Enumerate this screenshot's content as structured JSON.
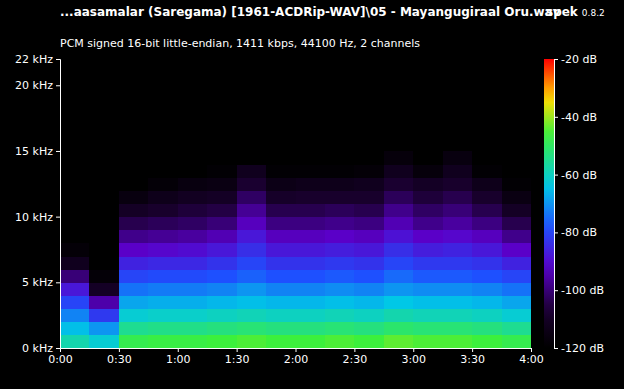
{
  "chart_data": {
    "type": "spectrogram",
    "title": "...aasamalar (Saregama) [1961-ACDRip-WAV]\\05 - Mayangugiraal Oru.wav",
    "subtitle": "PCM signed 16-bit little-endian, 1411 kbps, 44100 Hz, 2 channels",
    "annotations": [
      "spek",
      "0.8.2"
    ],
    "xlim": [
      0,
      240
    ],
    "xticks": [
      {
        "value": 0,
        "label": "0:00"
      },
      {
        "value": 30,
        "label": "0:30"
      },
      {
        "value": 60,
        "label": "1:00"
      },
      {
        "value": 90,
        "label": "1:30"
      },
      {
        "value": 120,
        "label": "2:00"
      },
      {
        "value": 150,
        "label": "2:30"
      },
      {
        "value": 180,
        "label": "3:00"
      },
      {
        "value": 210,
        "label": "3:30"
      },
      {
        "value": 240,
        "label": "4:00"
      }
    ],
    "ylim": [
      0,
      22
    ],
    "yticks": [
      {
        "value": 0,
        "label": "0 kHz"
      },
      {
        "value": 5,
        "label": "5 kHz"
      },
      {
        "value": 10,
        "label": "10 kHz"
      },
      {
        "value": 15,
        "label": "15 kHz"
      },
      {
        "value": 20,
        "label": "20 kHz"
      },
      {
        "value": 22,
        "label": "22 kHz"
      }
    ],
    "x_bins": [
      0,
      15,
      30,
      45,
      60,
      75,
      90,
      105,
      120,
      135,
      150,
      165,
      180,
      195,
      210,
      225,
      240
    ],
    "y_bins": [
      0,
      1,
      2,
      3,
      4,
      5,
      6,
      7,
      8,
      9,
      10,
      11,
      12,
      13,
      14,
      15,
      16,
      17,
      18,
      19,
      20,
      21,
      22
    ],
    "z": [
      [
        -58,
        -62,
        -48,
        -47,
        -47,
        -46,
        -45,
        -46,
        -46,
        -45,
        -46,
        -44,
        -45,
        -45,
        -46,
        -48
      ],
      [
        -65,
        -70,
        -55,
        -54,
        -54,
        -53,
        -52,
        -53,
        -53,
        -52,
        -53,
        -51,
        -52,
        -52,
        -53,
        -55
      ],
      [
        -72,
        -82,
        -62,
        -61,
        -61,
        -60,
        -59,
        -60,
        -60,
        -59,
        -60,
        -58,
        -59,
        -59,
        -60,
        -62
      ],
      [
        -80,
        -95,
        -68,
        -67,
        -67,
        -66,
        -65,
        -66,
        -66,
        -65,
        -66,
        -64,
        -65,
        -65,
        -66,
        -68
      ],
      [
        -88,
        -110,
        -74,
        -73,
        -73,
        -72,
        -70,
        -72,
        -72,
        -71,
        -72,
        -70,
        -71,
        -71,
        -72,
        -74
      ],
      [
        -100,
        -118,
        -80,
        -79,
        -79,
        -78,
        -76,
        -78,
        -78,
        -77,
        -78,
        -75,
        -77,
        -77,
        -78,
        -80
      ],
      [
        -112,
        -120,
        -86,
        -85,
        -85,
        -83,
        -80,
        -83,
        -83,
        -82,
        -83,
        -80,
        -82,
        -82,
        -83,
        -86
      ],
      [
        -118,
        -120,
        -92,
        -91,
        -90,
        -88,
        -84,
        -88,
        -88,
        -87,
        -88,
        -84,
        -87,
        -86,
        -88,
        -92
      ],
      [
        -120,
        -120,
        -98,
        -97,
        -96,
        -94,
        -88,
        -93,
        -93,
        -92,
        -93,
        -89,
        -92,
        -91,
        -93,
        -98
      ],
      [
        -120,
        -120,
        -104,
        -103,
        -102,
        -100,
        -93,
        -99,
        -99,
        -98,
        -99,
        -94,
        -98,
        -96,
        -99,
        -104
      ],
      [
        -120,
        -120,
        -110,
        -108,
        -106,
        -105,
        -97,
        -104,
        -104,
        -103,
        -104,
        -98,
        -102,
        -100,
        -104,
        -110
      ],
      [
        -120,
        -120,
        -116,
        -113,
        -111,
        -110,
        -102,
        -109,
        -108,
        -108,
        -108,
        -103,
        -106,
        -104,
        -108,
        -115
      ],
      [
        -120,
        -120,
        -120,
        -118,
        -116,
        -115,
        -107,
        -114,
        -113,
        -113,
        -112,
        -107,
        -110,
        -108,
        -113,
        -119
      ],
      [
        -120,
        -120,
        -120,
        -120,
        -120,
        -119,
        -112,
        -119,
        -119,
        -119,
        -118,
        -112,
        -117,
        -112,
        -119,
        -120
      ],
      [
        -120,
        -120,
        -120,
        -120,
        -120,
        -120,
        -120,
        -120,
        -120,
        -120,
        -120,
        -117,
        -120,
        -116,
        -120,
        -120
      ],
      [
        -120,
        -120,
        -120,
        -120,
        -120,
        -120,
        -120,
        -120,
        -120,
        -120,
        -120,
        -120,
        -120,
        -120,
        -120,
        -120
      ],
      [
        -120,
        -120,
        -120,
        -120,
        -120,
        -120,
        -120,
        -120,
        -120,
        -120,
        -120,
        -120,
        -120,
        -120,
        -120,
        -120
      ],
      [
        -120,
        -120,
        -120,
        -120,
        -120,
        -120,
        -120,
        -120,
        -120,
        -120,
        -120,
        -120,
        -120,
        -120,
        -120,
        -120
      ],
      [
        -120,
        -120,
        -120,
        -120,
        -120,
        -120,
        -120,
        -120,
        -120,
        -120,
        -120,
        -120,
        -120,
        -120,
        -120,
        -120
      ],
      [
        -120,
        -120,
        -120,
        -120,
        -120,
        -120,
        -120,
        -120,
        -120,
        -120,
        -120,
        -120,
        -120,
        -120,
        -120,
        -120
      ],
      [
        -120,
        -120,
        -120,
        -120,
        -120,
        -120,
        -120,
        -120,
        -120,
        -120,
        -120,
        -120,
        -120,
        -120,
        -120,
        -120
      ],
      [
        -120,
        -120,
        -120,
        -120,
        -120,
        -120,
        -120,
        -120,
        -120,
        -120,
        -120,
        -120,
        -120,
        -120,
        -120,
        -120
      ]
    ],
    "zlim": [
      -120,
      -20
    ],
    "zticks": [
      {
        "value": -20,
        "label": "-20 dB"
      },
      {
        "value": -40,
        "label": "-40 dB"
      },
      {
        "value": -60,
        "label": "-60 dB"
      },
      {
        "value": -80,
        "label": "-80 dB"
      },
      {
        "value": -100,
        "label": "-100 dB"
      },
      {
        "value": -120,
        "label": "-120 dB"
      }
    ]
  }
}
